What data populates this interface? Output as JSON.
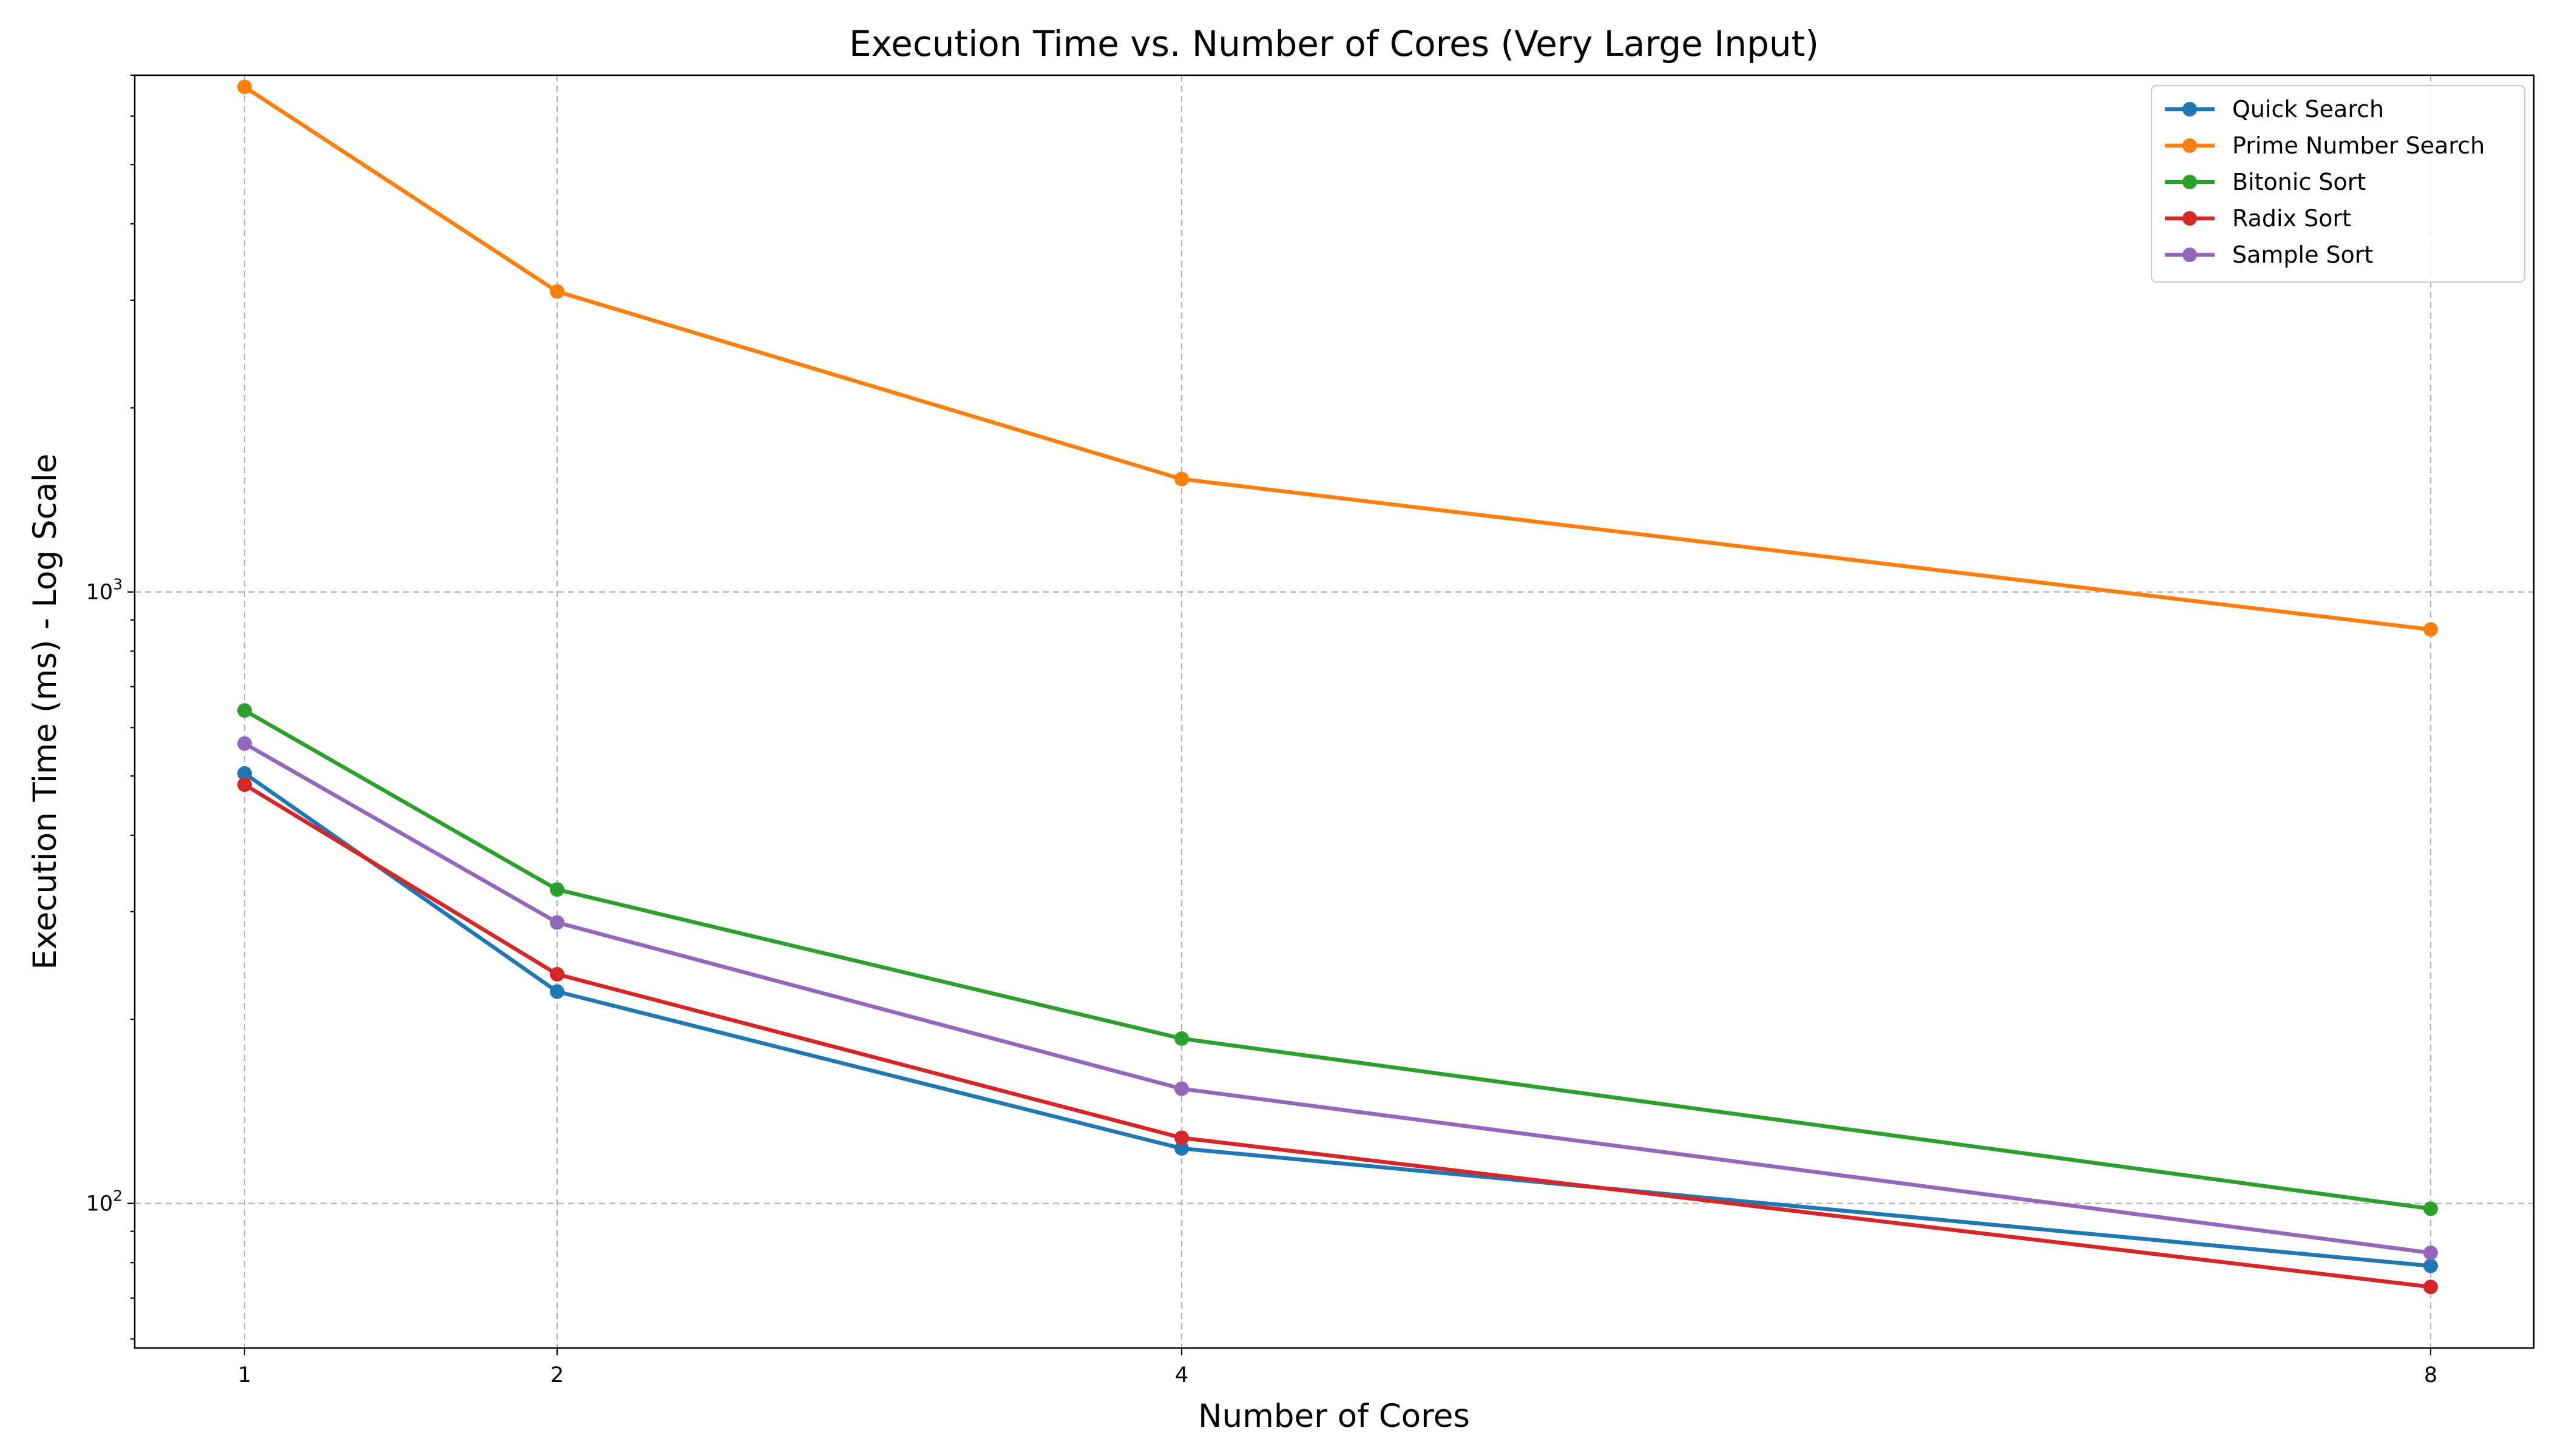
{
  "chart_data": {
    "type": "line",
    "title": "Execution Time vs. Number of Cores (Very Large Input)",
    "xlabel": "Number of Cores",
    "ylabel": "Execution Time (ms) - Log Scale",
    "x": [
      1,
      2,
      4,
      8
    ],
    "xticks": [
      "1",
      "2",
      "4",
      "8"
    ],
    "y_scale": "log",
    "ylim": [
      58,
      7000
    ],
    "yticks": [
      {
        "value": 100,
        "base": "10",
        "exp": "2"
      },
      {
        "value": 1000,
        "base": "10",
        "exp": "3"
      }
    ],
    "grid": true,
    "legend_position": "top-right",
    "series": [
      {
        "name": "Quick Search",
        "color": "#1f77b4",
        "values": [
          505,
          222,
          123,
          79
        ]
      },
      {
        "name": "Prime Number Search",
        "color": "#ff7f0e",
        "values": [
          6700,
          3100,
          1530,
          868
        ]
      },
      {
        "name": "Bitonic Sort",
        "color": "#2ca02c",
        "values": [
          640,
          326,
          186,
          98
        ]
      },
      {
        "name": "Radix Sort",
        "color": "#d62728",
        "values": [
          484,
          237,
          128,
          73
        ]
      },
      {
        "name": "Sample Sort",
        "color": "#9467bd",
        "values": [
          565,
          288,
          154,
          83
        ]
      }
    ]
  }
}
